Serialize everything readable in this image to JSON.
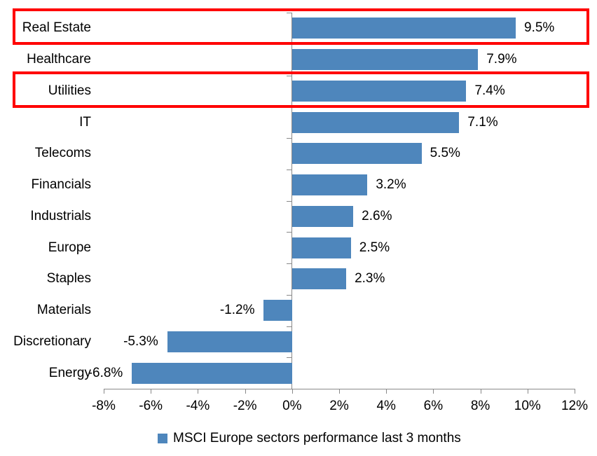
{
  "chart_data": {
    "type": "bar",
    "orientation": "horizontal",
    "categories": [
      "Real Estate",
      "Healthcare",
      "Utilities",
      "IT",
      "Telecoms",
      "Financials",
      "Industrials",
      "Europe",
      "Staples",
      "Materials",
      "Discretionary",
      "Energy"
    ],
    "values": [
      9.5,
      7.9,
      7.4,
      7.1,
      5.5,
      3.2,
      2.6,
      2.5,
      2.3,
      -1.2,
      -5.3,
      -6.8
    ],
    "data_labels": [
      "9.5%",
      "7.9%",
      "7.4%",
      "7.1%",
      "5.5%",
      "3.2%",
      "2.6%",
      "2.5%",
      "2.3%",
      "-1.2%",
      "-5.3%",
      "-6.8%"
    ],
    "x_tick_labels": [
      "-8%",
      "-6%",
      "-4%",
      "-2%",
      "0%",
      "2%",
      "4%",
      "6%",
      "8%",
      "10%",
      "12%"
    ],
    "x_tick_values": [
      -8,
      -6,
      -4,
      -2,
      0,
      2,
      4,
      6,
      8,
      10,
      12
    ],
    "xlim": [
      -8,
      12
    ],
    "grid": false,
    "legend": "MSCI Europe sectors performance last 3 months",
    "legend_position": "bottom-center",
    "highlighted_categories": [
      "Real Estate",
      "Utilities"
    ],
    "colors": {
      "bar": "#4e86bc",
      "highlight_box": "#ff0000",
      "axis": "#898989",
      "text": "#000000"
    }
  }
}
